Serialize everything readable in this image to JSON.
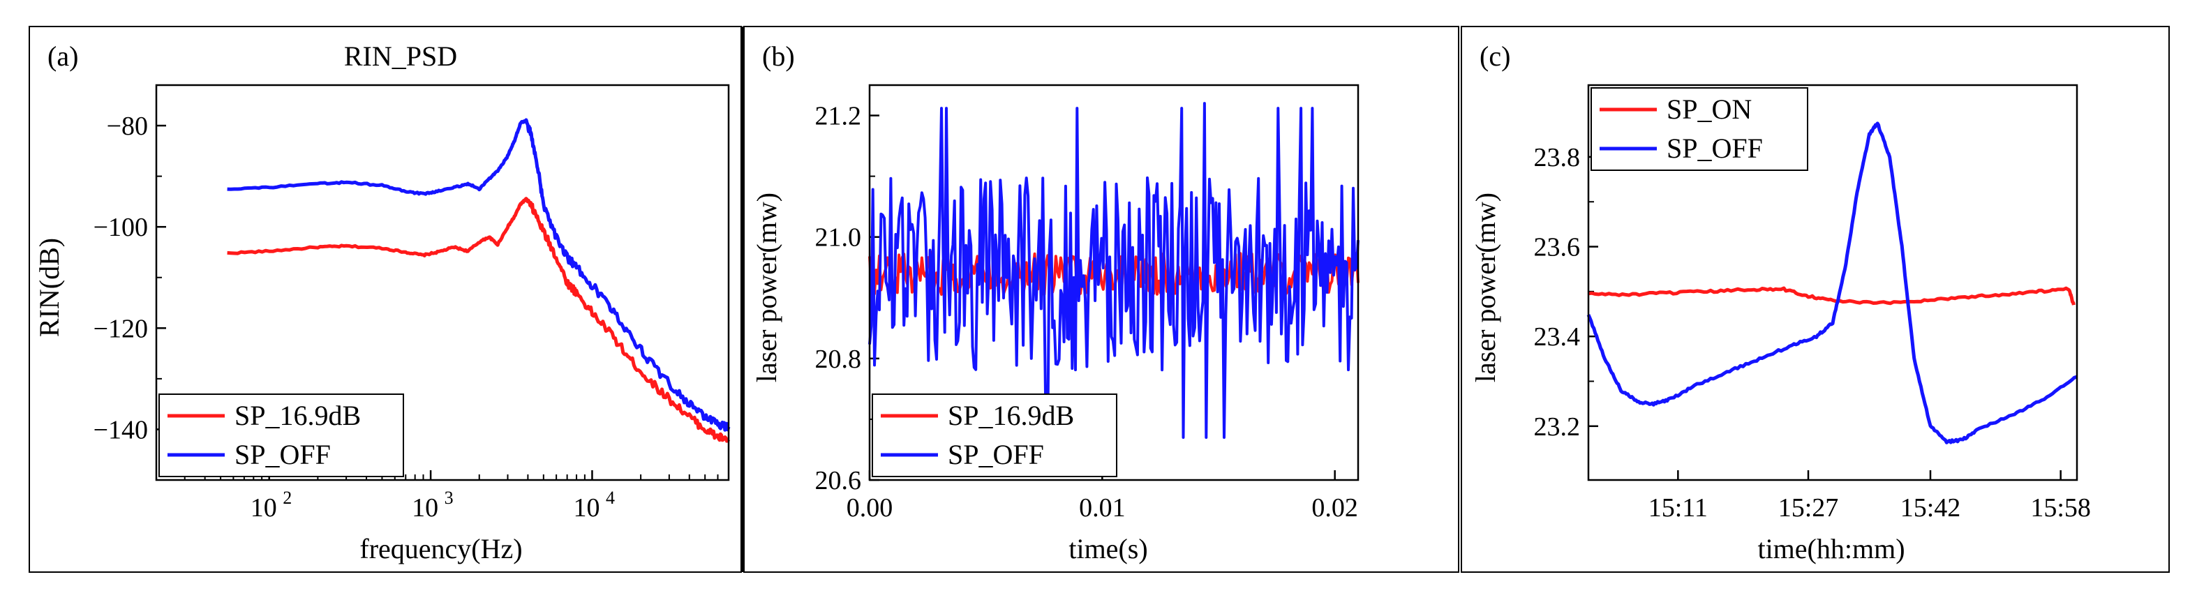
{
  "colors": {
    "red": "#ff1a1a",
    "blue": "#1414ff",
    "frame": "#000000"
  },
  "chart_data": [
    {
      "type": "line",
      "panel_label": "(a)",
      "title": "RIN_PSD",
      "xlabel": "frequency(Hz)",
      "ylabel": "RIN(dB)",
      "xscale": "log",
      "xlim": [
        20,
        70000
      ],
      "ylim": [
        -150,
        -72
      ],
      "xticks": [
        {
          "value": 100,
          "base": "10",
          "exp": "2"
        },
        {
          "value": 1000,
          "base": "10",
          "exp": "3"
        },
        {
          "value": 10000,
          "base": "10",
          "exp": "4"
        }
      ],
      "yticks": [
        {
          "value": -80,
          "label": "−80"
        },
        {
          "value": -100,
          "label": "−100"
        },
        {
          "value": -120,
          "label": "−120"
        },
        {
          "value": -140,
          "label": "−140"
        }
      ],
      "legend_position": "lower-left",
      "series": [
        {
          "name": "SP_16.9dB",
          "color": "red",
          "x": [
            55,
            100,
            200,
            300,
            500,
            700,
            900,
            1100,
            1400,
            1700,
            2000,
            2300,
            2600,
            3000,
            3300,
            3600,
            3900,
            4300,
            5000,
            6000,
            7000,
            8000,
            10000,
            13000,
            17000,
            22000,
            30000,
            40000,
            50000,
            60000,
            70000
          ],
          "y": [
            -105.2,
            -104.8,
            -104.0,
            -103.8,
            -104.2,
            -105.0,
            -105.6,
            -105.0,
            -104.0,
            -104.8,
            -103.0,
            -102.0,
            -103.5,
            -100.0,
            -98.0,
            -95.5,
            -94.5,
            -96.5,
            -101.0,
            -106.0,
            -111.0,
            -113.0,
            -117.0,
            -121.0,
            -126.0,
            -130.0,
            -134.0,
            -137.5,
            -140.0,
            -141.5,
            -142.0
          ]
        },
        {
          "name": "SP_OFF",
          "color": "blue",
          "x": [
            55,
            100,
            200,
            300,
            500,
            700,
            900,
            1100,
            1400,
            1700,
            2000,
            2300,
            2600,
            3000,
            3300,
            3600,
            3900,
            4200,
            4600,
            5000,
            6000,
            7000,
            8000,
            10000,
            13000,
            17000,
            22000,
            30000,
            40000,
            50000,
            60000,
            70000
          ],
          "y": [
            -92.5,
            -92.2,
            -91.5,
            -91.2,
            -91.8,
            -93.0,
            -93.5,
            -93.0,
            -92.2,
            -91.5,
            -92.5,
            -90.5,
            -89.0,
            -86.0,
            -83.0,
            -79.5,
            -79.0,
            -82.0,
            -88.0,
            -96.0,
            -102.0,
            -106.0,
            -108.0,
            -111.5,
            -116.0,
            -121.0,
            -126.0,
            -131.0,
            -135.0,
            -137.5,
            -139.0,
            -139.5
          ]
        }
      ]
    },
    {
      "type": "line",
      "panel_label": "(b)",
      "title": "",
      "xlabel": "time(s)",
      "ylabel": "laser power(mw)",
      "xscale": "linear",
      "xlim": [
        0,
        0.021
      ],
      "ylim": [
        20.6,
        21.25
      ],
      "xticks": [
        {
          "value": 0,
          "label": "0.00"
        },
        {
          "value": 0.01,
          "label": "0.01"
        },
        {
          "value": 0.02,
          "label": "0.02"
        }
      ],
      "yticks": [
        {
          "value": 20.6,
          "label": "20.6"
        },
        {
          "value": 20.8,
          "label": "20.8"
        },
        {
          "value": 21.0,
          "label": "21.0"
        },
        {
          "value": 21.2,
          "label": "21.2"
        }
      ],
      "legend_position": "lower-left",
      "series": [
        {
          "name": "SP_16.9dB",
          "color": "red",
          "x_range": [
            0,
            0.021
          ],
          "center": 20.94,
          "spread": 0.035,
          "points": 300
        },
        {
          "name": "SP_OFF",
          "color": "blue",
          "x_range": [
            0,
            0.021
          ],
          "center": 20.94,
          "spread": 0.16,
          "points": 300,
          "min": 20.67,
          "max": 21.22
        }
      ]
    },
    {
      "type": "line",
      "panel_label": "(c)",
      "title": "",
      "xlabel": "time(hh:mm)",
      "ylabel": "laser power(mw)",
      "xscale": "linear",
      "xlim": [
        900,
        960
      ],
      "ylim": [
        23.08,
        23.96
      ],
      "xticks": [
        {
          "value": 911,
          "label": "15:11"
        },
        {
          "value": 927,
          "label": "15:27"
        },
        {
          "value": 942,
          "label": "15:42"
        },
        {
          "value": 958,
          "label": "15:58"
        }
      ],
      "yticks": [
        {
          "value": 23.2,
          "label": "23.2"
        },
        {
          "value": 23.4,
          "label": "23.4"
        },
        {
          "value": 23.6,
          "label": "23.6"
        },
        {
          "value": 23.8,
          "label": "23.8"
        }
      ],
      "legend_position": "top-left",
      "series": [
        {
          "name": "SP_ON",
          "color": "red",
          "x": [
            900,
            905,
            910,
            915,
            920,
            924,
            927,
            930,
            935,
            940,
            945,
            950,
            955,
            959,
            959.6
          ],
          "y": [
            23.495,
            23.493,
            23.497,
            23.5,
            23.505,
            23.505,
            23.49,
            23.48,
            23.474,
            23.478,
            23.486,
            23.492,
            23.5,
            23.505,
            23.47
          ]
        },
        {
          "name": "SP_OFF",
          "color": "blue",
          "x": [
            900,
            902,
            904,
            906,
            908,
            910,
            913,
            917,
            921,
            925,
            928,
            930,
            931.5,
            933,
            934.5,
            935.5,
            937,
            938.5,
            940,
            942,
            944,
            946,
            948,
            952,
            956,
            960
          ],
          "y": [
            23.45,
            23.35,
            23.28,
            23.255,
            23.25,
            23.26,
            23.29,
            23.32,
            23.35,
            23.38,
            23.4,
            23.43,
            23.55,
            23.72,
            23.85,
            23.875,
            23.8,
            23.6,
            23.35,
            23.2,
            23.165,
            23.17,
            23.195,
            23.225,
            23.26,
            23.31
          ]
        }
      ]
    }
  ]
}
